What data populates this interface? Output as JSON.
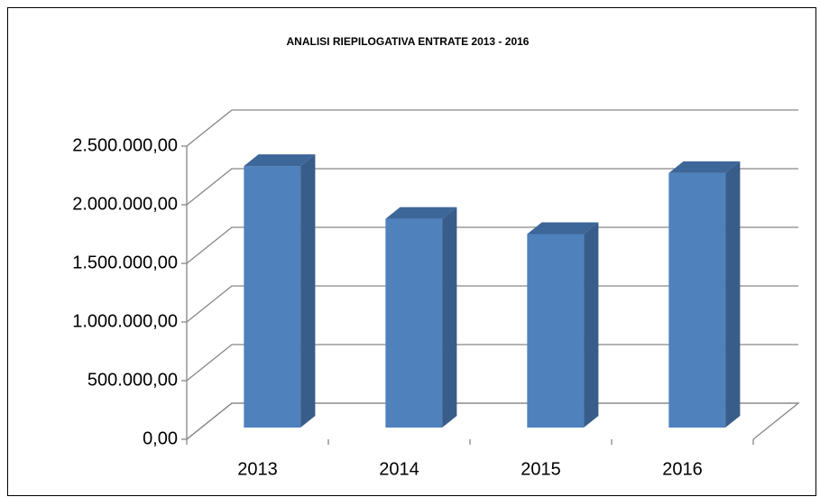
{
  "chart_data": {
    "type": "bar3d",
    "title": "ANALISI RIEPILOGATIVA ENTRATE 2013 - 2016",
    "categories": [
      "2013",
      "2014",
      "2015",
      "2016"
    ],
    "values": [
      2230000,
      1780000,
      1650000,
      2170000
    ],
    "color": "#4f81bd",
    "ylim": [
      0,
      2500000
    ],
    "yticks": [
      {
        "value": 0,
        "label": "0,00"
      },
      {
        "value": 500000,
        "label": "500.000,00"
      },
      {
        "value": 1000000,
        "label": "1.000.000,00"
      },
      {
        "value": 1500000,
        "label": "1.500.000,00"
      },
      {
        "value": 2000000,
        "label": "2.000.000,00"
      },
      {
        "value": 2500000,
        "label": "2.500.000,00"
      }
    ],
    "grid": true
  }
}
